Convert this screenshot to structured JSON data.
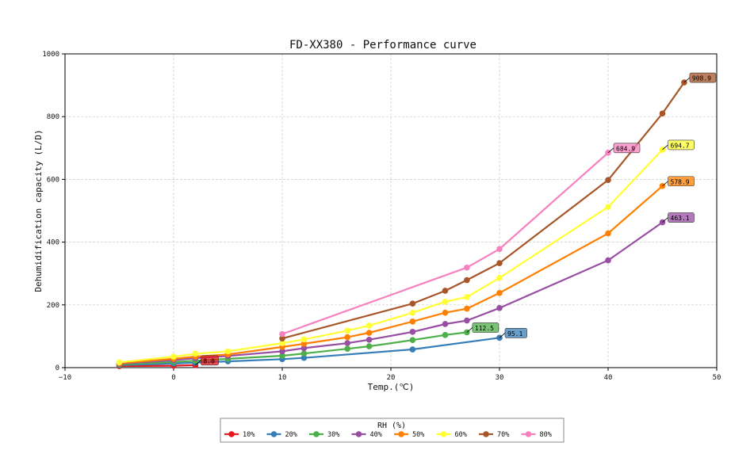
{
  "chart_data": {
    "type": "line",
    "title": "FD-XX380 - Performance curve",
    "xlabel": "Temp.(℃)",
    "ylabel": "Dehumidification capacity (L/D)",
    "xlim": [
      -10,
      50
    ],
    "ylim": [
      0,
      1000
    ],
    "xticks": [
      -10,
      0,
      10,
      20,
      30,
      40,
      50
    ],
    "yticks": [
      0,
      200,
      400,
      600,
      800,
      1000
    ],
    "grid": true,
    "legend": {
      "title": "RH (%)",
      "position": "bottom-center"
    },
    "series": [
      {
        "name": "10%",
        "color": "#e41a1c",
        "x": [
          -5,
          0,
          2
        ],
        "y": [
          5,
          6,
          8.0
        ],
        "end_label": "8.0"
      },
      {
        "name": "20%",
        "color": "#377eb8",
        "x": [
          -5,
          0,
          2,
          5,
          10,
          12,
          22,
          30
        ],
        "y": [
          8,
          13,
          16,
          20,
          27,
          31,
          58,
          95.1
        ],
        "end_label": "95.1"
      },
      {
        "name": "30%",
        "color": "#4daf4a",
        "x": [
          -5,
          0,
          2,
          5,
          10,
          12,
          16,
          18,
          22,
          25,
          27
        ],
        "y": [
          10,
          18,
          22,
          28,
          38,
          45,
          60,
          68,
          88,
          104,
          112.5
        ],
        "end_label": "112.5"
      },
      {
        "name": "40%",
        "color": "#984ea3",
        "x": [
          -5,
          0,
          2,
          5,
          10,
          12,
          16,
          18,
          22,
          25,
          27,
          30,
          40,
          45
        ],
        "y": [
          12,
          24,
          30,
          37,
          52,
          62,
          78,
          89,
          114,
          139,
          150,
          190,
          342,
          463.1
        ],
        "end_label": "463.1"
      },
      {
        "name": "50%",
        "color": "#ff7f00",
        "x": [
          -5,
          0,
          2,
          5,
          10,
          12,
          16,
          18,
          22,
          25,
          27,
          30,
          40,
          45
        ],
        "y": [
          14,
          28,
          35,
          42,
          66,
          76,
          97,
          111,
          147,
          175,
          188,
          238,
          428,
          578.9
        ],
        "end_label": "578.9"
      },
      {
        "name": "60%",
        "color": "#ffff33",
        "x": [
          -5,
          0,
          2,
          5,
          10,
          12,
          16,
          18,
          22,
          25,
          27,
          30,
          40,
          45
        ],
        "y": [
          17,
          35,
          44,
          52,
          78,
          90,
          118,
          134,
          175,
          210,
          225,
          286,
          512,
          694.7
        ],
        "end_label": "694.7"
      },
      {
        "name": "70%",
        "color": "#a65628",
        "x": [
          10,
          22,
          25,
          27,
          30,
          40,
          45,
          47
        ],
        "y": [
          93,
          204,
          245,
          279,
          333,
          598,
          810,
          908.9
        ],
        "end_label": "908.9"
      },
      {
        "name": "80%",
        "color": "#f781bf",
        "x": [
          10,
          27,
          30,
          40
        ],
        "y": [
          107,
          319,
          378,
          684.9
        ],
        "end_label": "684.9"
      }
    ]
  }
}
